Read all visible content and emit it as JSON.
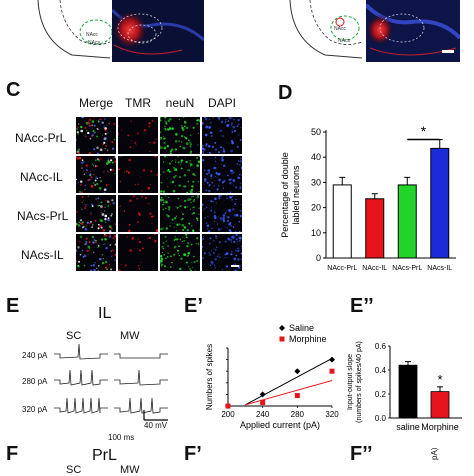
{
  "top": {},
  "panel_c": {
    "letter": "C",
    "columns": [
      "Merge",
      "TMR",
      "neuN",
      "DAPI"
    ],
    "rows": [
      "NAcc-PrL",
      "NAcc-IL",
      "NAcs-PrL",
      "NAcs-IL"
    ]
  },
  "panel_d": {
    "letter": "D",
    "significance": "*"
  },
  "panel_e": {
    "letter": "E",
    "title": "IL",
    "col_sc": "SC",
    "col_mw": "MW",
    "rows": [
      "240 pA",
      "280 pA",
      "320 pA"
    ],
    "scale_v": "40 mV",
    "scale_t": "100 ms"
  },
  "panel_e1": {
    "letter": "E’",
    "star": ""
  },
  "panel_e2": {
    "letter": "E’’",
    "star": "*"
  },
  "panel_f": {
    "letter": "F",
    "title": "PrL",
    "col_sc": "SC",
    "col_mw": "MW"
  },
  "panel_f1": {
    "letter": "F’"
  },
  "panel_f2": {
    "letter": "F’’",
    "ylabel_fragment": "pA)"
  },
  "colors": {
    "nacc_prl": "#ffffff",
    "nacc_il": "#e8141c",
    "nacs_prl": "#22d42a",
    "nacs_il": "#1a2bd8",
    "saline": "#000000",
    "morphine": "#e8141c"
  },
  "chart_data": [
    {
      "type": "bar",
      "panel": "D",
      "categories": [
        "NAcc-PrL",
        "NAcc-IL",
        "NAcs-PrL",
        "NAcs-IL"
      ],
      "values": [
        29,
        23.5,
        29,
        43.5
      ],
      "errors": [
        3,
        2,
        3,
        3.5
      ],
      "colors": [
        "#ffffff",
        "#e8141c",
        "#22d42a",
        "#1a2bd8"
      ],
      "ylabel": "Percentage of double\nlabled neurons",
      "ylim": [
        0,
        50
      ],
      "yticks": [
        0,
        10,
        20,
        30,
        40,
        50
      ]
    },
    {
      "type": "scatter",
      "panel": "E’",
      "xlabel": "Applied current (pA)",
      "ylabel": "Numbers of spikes",
      "xticks": [
        200,
        240,
        280,
        320
      ],
      "yticks": [
        0,
        1,
        2,
        3,
        4,
        5
      ],
      "xlim": [
        200,
        320
      ],
      "ylim": [
        0,
        5
      ],
      "series": [
        {
          "name": "Saline",
          "x": [
            200,
            240,
            280,
            320
          ],
          "values": [
            0,
            1,
            3,
            4
          ],
          "color": "#000000",
          "marker": "diamond"
        },
        {
          "name": "Morphine",
          "x": [
            200,
            240,
            280,
            320
          ],
          "values": [
            0,
            0.3,
            0.9,
            3
          ],
          "color": "#e8141c",
          "marker": "square"
        }
      ],
      "fits": [
        {
          "series": "Saline",
          "x": [
            220,
            320
          ],
          "values": [
            0.1,
            4.1
          ]
        },
        {
          "series": "Morphine",
          "x": [
            220,
            320
          ],
          "values": [
            0.1,
            2.2
          ]
        }
      ]
    },
    {
      "type": "bar",
      "panel": "E’’",
      "categories": [
        "saline",
        "Morphine"
      ],
      "values": [
        0.44,
        0.22
      ],
      "errors": [
        0.03,
        0.04
      ],
      "colors": [
        "#000000",
        "#e8141c"
      ],
      "ylabel": "Input-output slope\n(numbers of spikes/40 pA)",
      "ylim": [
        0,
        0.6
      ],
      "yticks": [
        0.0,
        0.2,
        0.4,
        0.6
      ],
      "ytick_labels": [
        "0.0",
        "0.2",
        "0.4",
        "0.6"
      ]
    }
  ]
}
